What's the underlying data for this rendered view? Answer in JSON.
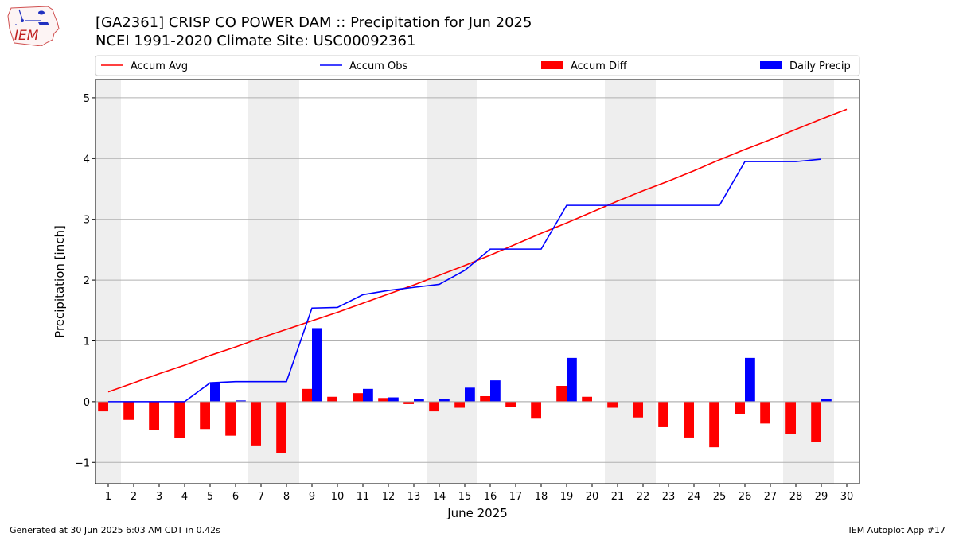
{
  "header": {
    "logo_text": "IEM",
    "title_line1": "[GA2361] CRISP CO POWER DAM :: Precipitation for Jun 2025",
    "title_line2": "NCEI 1991-2020 Climate Site: USC00092361"
  },
  "footer": {
    "left": "Generated at 30 Jun 2025 6:03 AM CDT in 0.42s",
    "right": "IEM Autoplot App #17"
  },
  "chart_data": {
    "type": "bar",
    "title": "[GA2361] CRISP CO POWER DAM :: Precipitation for Jun 2025",
    "subtitle": "NCEI 1991-2020 Climate Site: USC00092361",
    "xlabel": "June 2025",
    "ylabel": "Precipitation [inch]",
    "xlim": [
      0.5,
      30.5
    ],
    "ylim": [
      -1.35,
      5.3
    ],
    "yticks": [
      -1,
      0,
      1,
      2,
      3,
      4,
      5
    ],
    "ytick_labels": [
      "−1",
      "0",
      "1",
      "2",
      "3",
      "4",
      "5"
    ],
    "x": [
      1,
      2,
      3,
      4,
      5,
      6,
      7,
      8,
      9,
      10,
      11,
      12,
      13,
      14,
      15,
      16,
      17,
      18,
      19,
      20,
      21,
      22,
      23,
      24,
      25,
      26,
      27,
      28,
      29,
      30
    ],
    "grid": "horizontal",
    "legend_position": "top",
    "weekend_shading": [
      [
        0.5,
        1.5
      ],
      [
        6.5,
        8.5
      ],
      [
        13.5,
        15.5
      ],
      [
        20.5,
        22.5
      ],
      [
        27.5,
        29.5
      ]
    ],
    "weekend_color": "#eeeeee",
    "series": [
      {
        "name": "Accum Avg",
        "kind": "line",
        "color": "#ff0000",
        "x": [
          1,
          2,
          3,
          4,
          5,
          6,
          7,
          8,
          9,
          10,
          11,
          12,
          13,
          14,
          15,
          16,
          17,
          18,
          19,
          20,
          21,
          22,
          23,
          24,
          25,
          26,
          27,
          28,
          29,
          30
        ],
        "values": [
          0.16,
          0.31,
          0.46,
          0.6,
          0.76,
          0.9,
          1.05,
          1.19,
          1.33,
          1.47,
          1.62,
          1.77,
          1.92,
          2.08,
          2.24,
          2.41,
          2.59,
          2.77,
          2.94,
          3.12,
          3.3,
          3.47,
          3.63,
          3.8,
          3.98,
          4.15,
          4.31,
          4.48,
          4.65,
          4.81
        ]
      },
      {
        "name": "Accum Obs",
        "kind": "line",
        "color": "#0000ff",
        "x": [
          1,
          2,
          3,
          4,
          5,
          6,
          7,
          8,
          9,
          10,
          11,
          12,
          13,
          14,
          15,
          16,
          17,
          18,
          19,
          20,
          21,
          22,
          23,
          24,
          25,
          26,
          27,
          28,
          29
        ],
        "values": [
          0.0,
          0.0,
          0.0,
          0.0,
          0.31,
          0.33,
          0.33,
          0.33,
          1.54,
          1.55,
          1.76,
          1.83,
          1.88,
          1.93,
          2.16,
          2.51,
          2.51,
          2.51,
          3.23,
          3.23,
          3.23,
          3.23,
          3.23,
          3.23,
          3.23,
          3.95,
          3.95,
          3.95,
          3.99
        ]
      },
      {
        "name": "Accum Diff",
        "kind": "bar",
        "color": "#ff0000",
        "x": [
          1,
          2,
          3,
          4,
          5,
          6,
          7,
          8,
          9,
          10,
          11,
          12,
          13,
          14,
          15,
          16,
          17,
          18,
          19,
          20,
          21,
          22,
          23,
          24,
          25,
          26,
          27,
          28,
          29
        ],
        "values": [
          -0.16,
          -0.3,
          -0.47,
          -0.6,
          -0.45,
          -0.56,
          -0.72,
          -0.85,
          0.21,
          0.08,
          0.14,
          0.06,
          -0.04,
          -0.16,
          -0.1,
          0.09,
          -0.09,
          -0.28,
          0.26,
          0.08,
          -0.1,
          -0.26,
          -0.42,
          -0.59,
          -0.75,
          -0.2,
          -0.36,
          -0.53,
          -0.66
        ]
      },
      {
        "name": "Daily Precip",
        "kind": "bar",
        "color": "#0000ff",
        "x": [
          1,
          2,
          3,
          4,
          5,
          6,
          7,
          8,
          9,
          10,
          11,
          12,
          13,
          14,
          15,
          16,
          17,
          18,
          19,
          20,
          21,
          22,
          23,
          24,
          25,
          26,
          27,
          28,
          29
        ],
        "values": [
          0,
          0,
          0,
          0,
          0.31,
          0.02,
          0,
          0,
          1.21,
          0,
          0.21,
          0.07,
          0.04,
          0.05,
          0.23,
          0.35,
          0,
          0,
          0.72,
          0,
          0,
          0,
          0,
          0,
          0,
          0.72,
          0,
          0,
          0.04
        ]
      }
    ]
  }
}
